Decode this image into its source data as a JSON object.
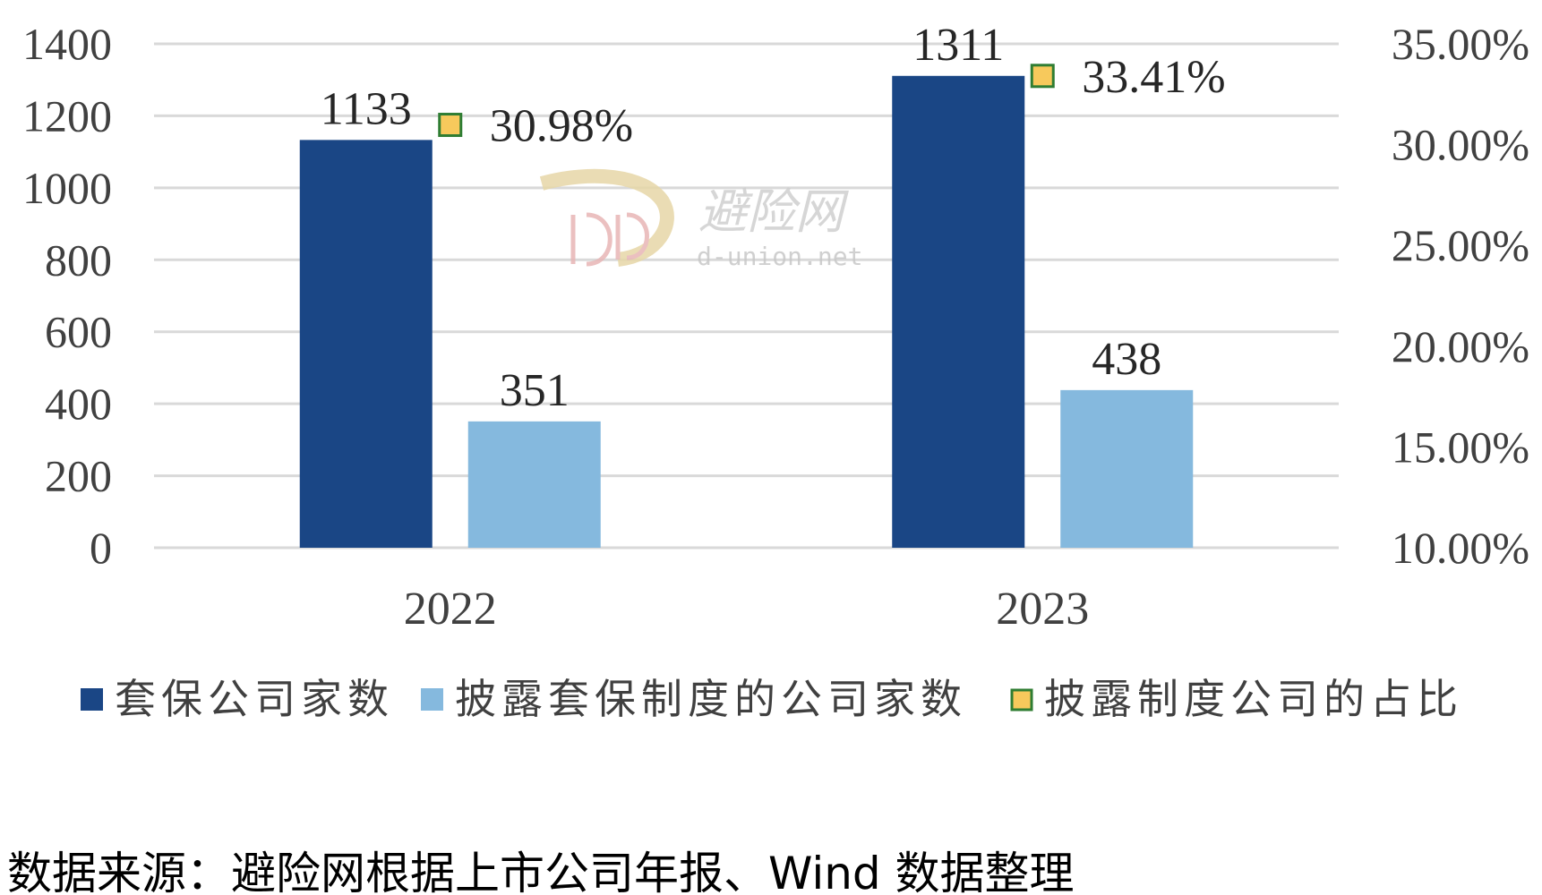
{
  "chart_data": {
    "type": "bar",
    "categories": [
      "2022",
      "2023"
    ],
    "series": [
      {
        "name": "套保公司家数",
        "type": "bar",
        "axis": "left",
        "color": "#1a4685",
        "values": [
          1133,
          1311
        ],
        "labels": [
          "1133",
          "1311"
        ]
      },
      {
        "name": "披露套保制度的公司家数",
        "type": "bar",
        "axis": "left",
        "color": "#85b9de",
        "values": [
          351,
          438
        ],
        "labels": [
          "351",
          "438"
        ]
      },
      {
        "name": "披露制度公司的占比",
        "type": "marker",
        "axis": "right",
        "color": "#f7c95c",
        "edge_color": "#2f7d32",
        "values": [
          0.3098,
          0.3341
        ],
        "labels": [
          "30.98%",
          "33.41%"
        ]
      }
    ],
    "yaxis_left": {
      "ylim": [
        0,
        1400
      ],
      "ticks": [
        0,
        200,
        400,
        600,
        800,
        1000,
        1200,
        1400
      ],
      "tick_labels": [
        "0",
        "200",
        "400",
        "600",
        "800",
        "1000",
        "1200",
        "1400"
      ]
    },
    "yaxis_right": {
      "ylim": [
        0.1,
        0.35
      ],
      "ticks": [
        0.1,
        0.15,
        0.2,
        0.25,
        0.3,
        0.35
      ],
      "tick_labels": [
        "10.00%",
        "15.00%",
        "20.00%",
        "25.00%",
        "30.00%",
        "35.00%"
      ]
    },
    "grid": true,
    "legend_position": "bottom"
  },
  "watermark": {
    "name": "避险网",
    "url": "d-union.net"
  },
  "source": "数据来源：避险网根据上市公司年报、Wind 数据整理"
}
